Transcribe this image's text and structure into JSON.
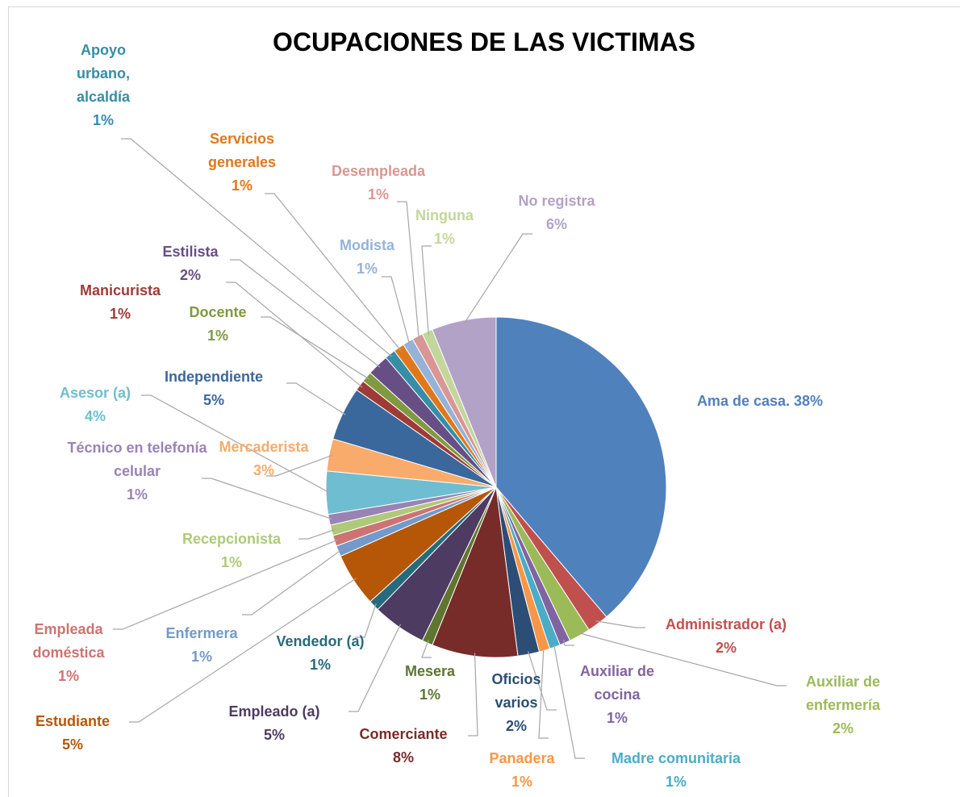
{
  "chart_data": {
    "type": "pie",
    "title": "OCUPACIONES DE LAS VICTIMAS",
    "categories": [
      "Ama de casa.",
      "Administrador (a)",
      "Auxiliar de enfermería",
      "Auxiliar de cocina",
      "Madre comunitaria",
      "Panadera",
      "Oficios varios",
      "Comerciante",
      "Mesera",
      "Empleado (a)",
      "Vendedor (a)",
      "Estudiante",
      "Enfermera",
      "Empleada doméstica",
      "Recepcionista",
      "Técnico en telefonía celular",
      "Asesor (a)",
      "Mercaderista",
      "Independiente",
      "Manicurista",
      "Docente",
      "Estilista",
      "Apoyo urbano, alcaldía",
      "Servicios generales",
      "Modista",
      "Desempleada",
      "Ninguna",
      "No registra"
    ],
    "values": [
      38,
      2,
      2,
      1,
      1,
      1,
      2,
      8,
      1,
      5,
      1,
      5,
      1,
      1,
      1,
      1,
      4,
      3,
      5,
      1,
      1,
      2,
      1,
      1,
      1,
      1,
      1,
      6
    ],
    "value_labels": [
      "38%",
      "2%",
      "2%",
      "1%",
      "1%",
      "1%",
      "2%",
      "8%",
      "1%",
      "5%",
      "1%",
      "5%",
      "1%",
      "1%",
      "1%",
      "1%",
      "4%",
      "3%",
      "5%",
      "1%",
      "1%",
      "2%",
      "1%",
      "1%",
      "1%",
      "1%",
      "1%",
      "6%"
    ],
    "colors": [
      "#4f81bd",
      "#c0504d",
      "#9bbb59",
      "#8064a2",
      "#4bacc6",
      "#f79646",
      "#2c4d75",
      "#772c2a",
      "#5f7530",
      "#4d3b62",
      "#276a7c",
      "#b65708",
      "#729aca",
      "#cd7371",
      "#afc97a",
      "#9983b5",
      "#6fbdd1",
      "#f9ab6b",
      "#3a679c",
      "#9e3b37",
      "#7f9a41",
      "#674f86",
      "#358ea6",
      "#e0781b",
      "#95b3d7",
      "#d99694",
      "#c3d69b",
      "#b3a2c7"
    ]
  }
}
